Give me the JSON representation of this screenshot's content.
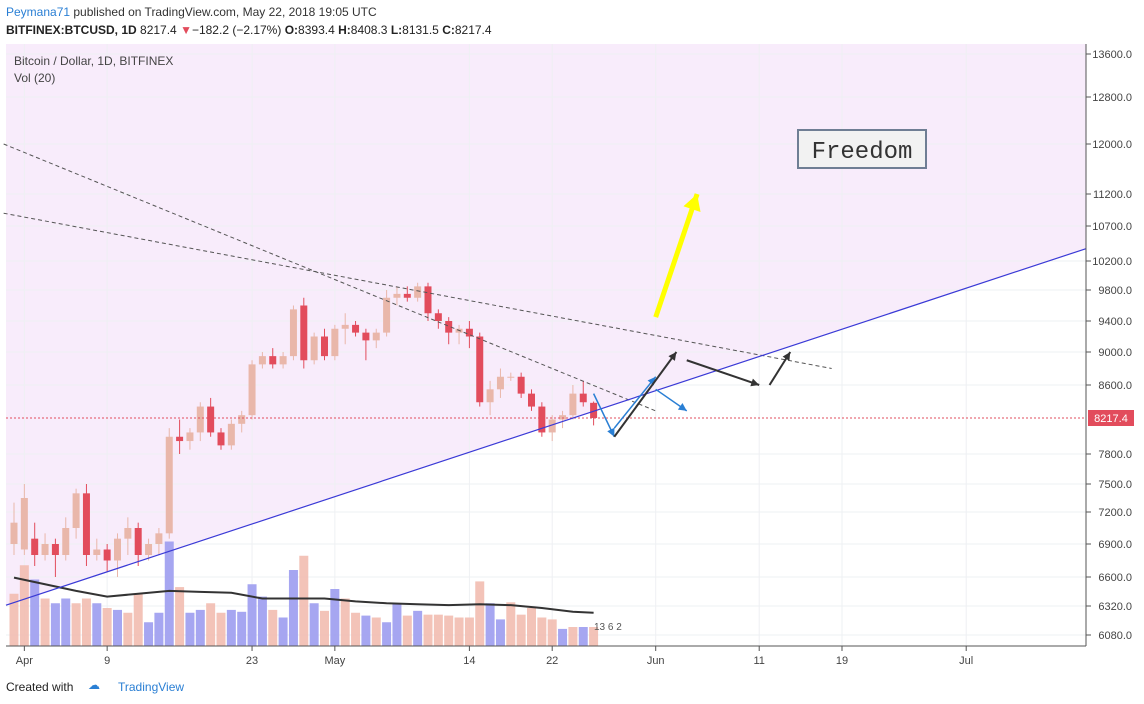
{
  "header": {
    "author": "Peymana71",
    "published_text": " published on TradingView.com, May 22, 2018 19:05 UTC",
    "symbol": "BITFINEX:BTCUSD, 1D",
    "last": "8217.4",
    "change_arrow": "▼",
    "change": "−182.2 (−2.17%)",
    "o_label": "O:",
    "o": "8393.4",
    "h_label": "H:",
    "h": "8408.3",
    "l_label": "L:",
    "l": "8131.5",
    "c_label": "C:",
    "c": "8217.4"
  },
  "legend": {
    "title": "Bitcoin / Dollar, 1D, BITFINEX",
    "vol": "Vol (20)"
  },
  "annotations": {
    "freedom": "Freedom",
    "price_label": "8217.4",
    "volume_badge": "13 6 2"
  },
  "footer": {
    "created": "Created with",
    "brand": "TradingView"
  },
  "colors": {
    "up": "#e9b7aa",
    "down": "#e24c5c",
    "vol_up": "#f2bdb0",
    "vol_down": "#9c9cf0",
    "shade": "#f8ecfb",
    "trendline": "#3a3ad6",
    "arrow_yellow": "#ffff00",
    "arrow_blue": "#2a7fd4",
    "arrow_dark": "#333333",
    "ma": "#333333"
  },
  "chart_data": {
    "type": "candlestick",
    "title": "Bitcoin / Dollar, 1D, BITFINEX",
    "y_ticks": [
      6080,
      6320,
      6600,
      6900,
      7200,
      7500,
      7800,
      8217.4,
      8600,
      9000,
      9400,
      9800,
      10200,
      10700,
      11200,
      12000,
      12800,
      13600
    ],
    "y_tick_labels": [
      "6080.0",
      "6320.0",
      "6600.0",
      "6900.0",
      "7200.0",
      "7500.0",
      "7800.0",
      "8217.4",
      "8600.0",
      "9000.0",
      "9400.0",
      "9800.0",
      "10200.0",
      "10700.0",
      "11200.0",
      "12000.0",
      "12800.0",
      "13600.0"
    ],
    "x_tick_labels": [
      "Apr",
      "9",
      "23",
      "May",
      "14",
      "22",
      "Jun",
      "11",
      "19",
      "Jul"
    ],
    "x_tick_days": [
      1,
      9,
      23,
      31,
      44,
      52,
      62,
      72,
      80,
      92
    ],
    "candles": [
      {
        "d": 0,
        "o": 6900,
        "h": 7300,
        "l": 6800,
        "c": 7100
      },
      {
        "d": 1,
        "o": 6850,
        "h": 7500,
        "l": 6800,
        "c": 7350
      },
      {
        "d": 2,
        "o": 6950,
        "h": 7100,
        "l": 6700,
        "c": 6800
      },
      {
        "d": 3,
        "o": 6800,
        "h": 7000,
        "l": 6750,
        "c": 6900
      },
      {
        "d": 4,
        "o": 6900,
        "h": 6950,
        "l": 6600,
        "c": 6800
      },
      {
        "d": 5,
        "o": 6800,
        "h": 7150,
        "l": 6750,
        "c": 7050
      },
      {
        "d": 6,
        "o": 7050,
        "h": 7450,
        "l": 6950,
        "c": 7400
      },
      {
        "d": 7,
        "o": 7400,
        "h": 7500,
        "l": 6700,
        "c": 6800
      },
      {
        "d": 8,
        "o": 6800,
        "h": 6950,
        "l": 6750,
        "c": 6850
      },
      {
        "d": 9,
        "o": 6850,
        "h": 6900,
        "l": 6650,
        "c": 6750
      },
      {
        "d": 10,
        "o": 6750,
        "h": 7000,
        "l": 6600,
        "c": 6950
      },
      {
        "d": 11,
        "o": 6950,
        "h": 7150,
        "l": 6800,
        "c": 7050
      },
      {
        "d": 12,
        "o": 7050,
        "h": 7100,
        "l": 6700,
        "c": 6800
      },
      {
        "d": 13,
        "o": 6800,
        "h": 6950,
        "l": 6750,
        "c": 6900
      },
      {
        "d": 14,
        "o": 6900,
        "h": 7050,
        "l": 6800,
        "c": 7000
      },
      {
        "d": 15,
        "o": 7000,
        "h": 8100,
        "l": 6950,
        "c": 8000
      },
      {
        "d": 16,
        "o": 8000,
        "h": 8200,
        "l": 7800,
        "c": 7950
      },
      {
        "d": 17,
        "o": 7950,
        "h": 8100,
        "l": 7850,
        "c": 8050
      },
      {
        "d": 18,
        "o": 8050,
        "h": 8400,
        "l": 7950,
        "c": 8350
      },
      {
        "d": 19,
        "o": 8350,
        "h": 8450,
        "l": 8000,
        "c": 8050
      },
      {
        "d": 20,
        "o": 8050,
        "h": 8100,
        "l": 7850,
        "c": 7900
      },
      {
        "d": 21,
        "o": 7900,
        "h": 8200,
        "l": 7850,
        "c": 8150
      },
      {
        "d": 22,
        "o": 8150,
        "h": 8300,
        "l": 8050,
        "c": 8250
      },
      {
        "d": 23,
        "o": 8250,
        "h": 8900,
        "l": 8200,
        "c": 8850
      },
      {
        "d": 24,
        "o": 8850,
        "h": 9000,
        "l": 8800,
        "c": 8950
      },
      {
        "d": 25,
        "o": 8950,
        "h": 9050,
        "l": 8800,
        "c": 8850
      },
      {
        "d": 26,
        "o": 8850,
        "h": 9000,
        "l": 8800,
        "c": 8950
      },
      {
        "d": 27,
        "o": 8950,
        "h": 9600,
        "l": 8900,
        "c": 9550
      },
      {
        "d": 28,
        "o": 9600,
        "h": 9700,
        "l": 8800,
        "c": 8900
      },
      {
        "d": 29,
        "o": 8900,
        "h": 9250,
        "l": 8850,
        "c": 9200
      },
      {
        "d": 30,
        "o": 9200,
        "h": 9300,
        "l": 8900,
        "c": 8950
      },
      {
        "d": 31,
        "o": 8950,
        "h": 9350,
        "l": 8900,
        "c": 9300
      },
      {
        "d": 32,
        "o": 9300,
        "h": 9500,
        "l": 9100,
        "c": 9350
      },
      {
        "d": 33,
        "o": 9350,
        "h": 9400,
        "l": 9200,
        "c": 9250
      },
      {
        "d": 34,
        "o": 9250,
        "h": 9300,
        "l": 8900,
        "c": 9150
      },
      {
        "d": 35,
        "o": 9150,
        "h": 9300,
        "l": 9050,
        "c": 9250
      },
      {
        "d": 36,
        "o": 9250,
        "h": 9800,
        "l": 9200,
        "c": 9700
      },
      {
        "d": 37,
        "o": 9700,
        "h": 9850,
        "l": 9600,
        "c": 9750
      },
      {
        "d": 38,
        "o": 9750,
        "h": 9850,
        "l": 9650,
        "c": 9700
      },
      {
        "d": 39,
        "o": 9700,
        "h": 9900,
        "l": 9650,
        "c": 9850
      },
      {
        "d": 40,
        "o": 9850,
        "h": 9900,
        "l": 9400,
        "c": 9500
      },
      {
        "d": 41,
        "o": 9500,
        "h": 9550,
        "l": 9300,
        "c": 9400
      },
      {
        "d": 42,
        "o": 9400,
        "h": 9450,
        "l": 9100,
        "c": 9250
      },
      {
        "d": 43,
        "o": 9250,
        "h": 9350,
        "l": 9100,
        "c": 9300
      },
      {
        "d": 44,
        "o": 9300,
        "h": 9400,
        "l": 9050,
        "c": 9200
      },
      {
        "d": 45,
        "o": 9200,
        "h": 9250,
        "l": 8350,
        "c": 8400
      },
      {
        "d": 46,
        "o": 8400,
        "h": 8650,
        "l": 8250,
        "c": 8550
      },
      {
        "d": 47,
        "o": 8550,
        "h": 8800,
        "l": 8450,
        "c": 8700
      },
      {
        "d": 48,
        "o": 8700,
        "h": 8750,
        "l": 8650,
        "c": 8700
      },
      {
        "d": 49,
        "o": 8700,
        "h": 8750,
        "l": 8450,
        "c": 8500
      },
      {
        "d": 50,
        "o": 8500,
        "h": 8550,
        "l": 8300,
        "c": 8350
      },
      {
        "d": 51,
        "o": 8350,
        "h": 8400,
        "l": 8000,
        "c": 8050
      },
      {
        "d": 52,
        "o": 8050,
        "h": 8250,
        "l": 7950,
        "c": 8200
      },
      {
        "d": 53,
        "o": 8200,
        "h": 8300,
        "l": 8100,
        "c": 8250
      },
      {
        "d": 54,
        "o": 8250,
        "h": 8600,
        "l": 8200,
        "c": 8500
      },
      {
        "d": 55,
        "o": 8500,
        "h": 8650,
        "l": 8350,
        "c": 8400
      },
      {
        "d": 56,
        "o": 8393.4,
        "h": 8408.3,
        "l": 8131.5,
        "c": 8217.4
      }
    ],
    "volume": [
      {
        "d": 0,
        "v": 0.55,
        "dir": "up"
      },
      {
        "d": 1,
        "v": 0.85,
        "dir": "up"
      },
      {
        "d": 2,
        "v": 0.7,
        "dir": "down"
      },
      {
        "d": 3,
        "v": 0.5,
        "dir": "up"
      },
      {
        "d": 4,
        "v": 0.45,
        "dir": "down"
      },
      {
        "d": 5,
        "v": 0.5,
        "dir": "down"
      },
      {
        "d": 6,
        "v": 0.45,
        "dir": "up"
      },
      {
        "d": 7,
        "v": 0.5,
        "dir": "up"
      },
      {
        "d": 8,
        "v": 0.45,
        "dir": "down"
      },
      {
        "d": 9,
        "v": 0.4,
        "dir": "up"
      },
      {
        "d": 10,
        "v": 0.38,
        "dir": "down"
      },
      {
        "d": 11,
        "v": 0.35,
        "dir": "up"
      },
      {
        "d": 12,
        "v": 0.55,
        "dir": "up"
      },
      {
        "d": 13,
        "v": 0.25,
        "dir": "down"
      },
      {
        "d": 14,
        "v": 0.35,
        "dir": "down"
      },
      {
        "d": 15,
        "v": 1.1,
        "dir": "down"
      },
      {
        "d": 16,
        "v": 0.62,
        "dir": "up"
      },
      {
        "d": 17,
        "v": 0.35,
        "dir": "down"
      },
      {
        "d": 18,
        "v": 0.38,
        "dir": "down"
      },
      {
        "d": 19,
        "v": 0.45,
        "dir": "up"
      },
      {
        "d": 20,
        "v": 0.35,
        "dir": "up"
      },
      {
        "d": 21,
        "v": 0.38,
        "dir": "down"
      },
      {
        "d": 22,
        "v": 0.36,
        "dir": "down"
      },
      {
        "d": 23,
        "v": 0.65,
        "dir": "down"
      },
      {
        "d": 24,
        "v": 0.52,
        "dir": "down"
      },
      {
        "d": 25,
        "v": 0.38,
        "dir": "up"
      },
      {
        "d": 26,
        "v": 0.3,
        "dir": "down"
      },
      {
        "d": 27,
        "v": 0.8,
        "dir": "down"
      },
      {
        "d": 28,
        "v": 0.95,
        "dir": "up"
      },
      {
        "d": 29,
        "v": 0.45,
        "dir": "down"
      },
      {
        "d": 30,
        "v": 0.37,
        "dir": "up"
      },
      {
        "d": 31,
        "v": 0.6,
        "dir": "down"
      },
      {
        "d": 32,
        "v": 0.5,
        "dir": "up"
      },
      {
        "d": 33,
        "v": 0.35,
        "dir": "up"
      },
      {
        "d": 34,
        "v": 0.32,
        "dir": "down"
      },
      {
        "d": 35,
        "v": 0.3,
        "dir": "up"
      },
      {
        "d": 36,
        "v": 0.25,
        "dir": "down"
      },
      {
        "d": 37,
        "v": 0.45,
        "dir": "down"
      },
      {
        "d": 38,
        "v": 0.32,
        "dir": "up"
      },
      {
        "d": 39,
        "v": 0.37,
        "dir": "down"
      },
      {
        "d": 40,
        "v": 0.33,
        "dir": "up"
      },
      {
        "d": 41,
        "v": 0.33,
        "dir": "up"
      },
      {
        "d": 42,
        "v": 0.32,
        "dir": "up"
      },
      {
        "d": 43,
        "v": 0.3,
        "dir": "up"
      },
      {
        "d": 44,
        "v": 0.3,
        "dir": "up"
      },
      {
        "d": 45,
        "v": 0.68,
        "dir": "up"
      },
      {
        "d": 46,
        "v": 0.45,
        "dir": "down"
      },
      {
        "d": 47,
        "v": 0.28,
        "dir": "down"
      },
      {
        "d": 48,
        "v": 0.46,
        "dir": "up"
      },
      {
        "d": 49,
        "v": 0.33,
        "dir": "up"
      },
      {
        "d": 50,
        "v": 0.4,
        "dir": "up"
      },
      {
        "d": 51,
        "v": 0.3,
        "dir": "up"
      },
      {
        "d": 52,
        "v": 0.28,
        "dir": "up"
      },
      {
        "d": 53,
        "v": 0.18,
        "dir": "down"
      },
      {
        "d": 54,
        "v": 0.2,
        "dir": "up"
      },
      {
        "d": 55,
        "v": 0.2,
        "dir": "down"
      },
      {
        "d": 56,
        "v": 0.2,
        "dir": "up"
      }
    ],
    "volume_ma": [
      [
        0,
        0.72
      ],
      [
        3,
        0.65
      ],
      [
        6,
        0.58
      ],
      [
        9,
        0.52
      ],
      [
        12,
        0.55
      ],
      [
        15,
        0.58
      ],
      [
        18,
        0.57
      ],
      [
        21,
        0.56
      ],
      [
        24,
        0.5
      ],
      [
        27,
        0.5
      ],
      [
        30,
        0.5
      ],
      [
        33,
        0.47
      ],
      [
        36,
        0.45
      ],
      [
        39,
        0.44
      ],
      [
        42,
        0.43
      ],
      [
        45,
        0.44
      ],
      [
        48,
        0.43
      ],
      [
        51,
        0.4
      ],
      [
        54,
        0.36
      ],
      [
        56,
        0.35
      ]
    ],
    "trendline": [
      [
        -1,
        6320
      ],
      [
        79,
        9250
      ]
    ],
    "dashed_lines": [
      [
        [
          -1,
          12000
        ],
        [
          62,
          8300
        ]
      ],
      [
        [
          -1,
          10900
        ],
        [
          79,
          8800
        ]
      ]
    ],
    "arrows": [
      {
        "color": "yellow",
        "from": [
          62,
          9450
        ],
        "to": [
          66,
          11200
        ]
      },
      {
        "color": "blue",
        "from": [
          56,
          8500
        ],
        "to": [
          58,
          8000
        ]
      },
      {
        "color": "blue",
        "from": [
          58,
          8100
        ],
        "to": [
          62,
          8700
        ]
      },
      {
        "color": "dark",
        "from": [
          58,
          8000
        ],
        "to": [
          64,
          9000
        ]
      },
      {
        "color": "blue",
        "from": [
          62,
          8550
        ],
        "to": [
          65,
          8300
        ]
      },
      {
        "color": "dark",
        "from": [
          65,
          8900
        ],
        "to": [
          72,
          8600
        ]
      },
      {
        "color": "dark",
        "from": [
          73,
          8600
        ],
        "to": [
          75,
          9000
        ]
      }
    ]
  }
}
